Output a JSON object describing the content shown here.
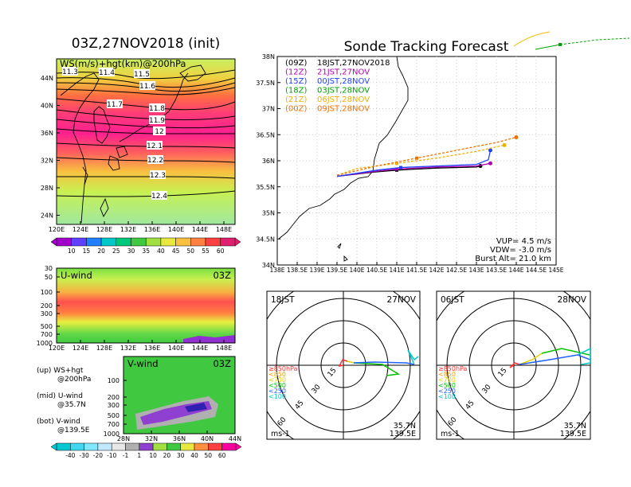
{
  "left": {
    "title": "03Z,27NOV2018 (init)",
    "top_panel": {
      "label": "WS(m/s)+hgt(km)@200hPa",
      "lat_ticks": [
        "44N",
        "40N",
        "36N",
        "32N",
        "28N",
        "24N"
      ],
      "lon_ticks": [
        "120E",
        "124E",
        "128E",
        "132E",
        "136E",
        "140E",
        "144E",
        "148E"
      ],
      "contours": [
        "11.3",
        "11.4",
        "11.5",
        "11.6",
        "11.7",
        "11.8",
        "11.9",
        "12",
        "12.1",
        "12.2",
        "12.3",
        "12.4"
      ],
      "colorbar_ticks": [
        "10",
        "15",
        "20",
        "25",
        "30",
        "35",
        "40",
        "45",
        "50",
        "55",
        "60"
      ]
    },
    "mid_panel": {
      "label": "U-wind",
      "time": "03Z",
      "p_ticks": [
        "30",
        "50",
        "100",
        "200",
        "300",
        "500",
        "700",
        "1000"
      ],
      "lon_ticks": [
        "120E",
        "124E",
        "128E",
        "132E",
        "136E",
        "140E",
        "144E",
        "148E"
      ]
    },
    "bot_panel": {
      "label": "V-wind",
      "time": "03Z",
      "p_ticks": [
        "100",
        "200",
        "300",
        "500",
        "700",
        "1000"
      ],
      "lat_ticks": [
        "28N",
        "32N",
        "36N",
        "40N",
        "44N"
      ],
      "colorbar_ticks": [
        "-40",
        "-30",
        "-20",
        "-10",
        "-1",
        "1",
        "10",
        "20",
        "30",
        "40",
        "50",
        "60"
      ]
    },
    "notes": [
      {
        "a": "(up) WS+hgt",
        "b": "@200hPa"
      },
      {
        "a": "(mid) U-wind",
        "b": "@35.7N"
      },
      {
        "a": "(bot) V-wind",
        "b": "@139.5E"
      }
    ]
  },
  "right": {
    "title": "Sonde Tracking Forecast",
    "map": {
      "lat_ticks": [
        "38N",
        "37.5N",
        "37N",
        "36.5N",
        "36N",
        "35.5N",
        "35N",
        "34.5N",
        "34N"
      ],
      "lon_ticks": [
        "138E",
        "138.5E",
        "139E",
        "139.5E",
        "140E",
        "140.5E",
        "141E",
        "141.5E",
        "142E",
        "142.5E",
        "143E",
        "143.5E",
        "144E",
        "144.5E",
        "145E"
      ],
      "legend": [
        {
          "z": "(09Z)",
          "t": "18JST,27NOV2018",
          "color": "#000000"
        },
        {
          "z": "(12Z)",
          "t": "21JST,27NOV",
          "color": "#b000b0"
        },
        {
          "z": "(15Z)",
          "t": "00JST,28NOV",
          "color": "#2040ff"
        },
        {
          "z": "(18Z)",
          "t": "03JST,28NOV",
          "color": "#00a000"
        },
        {
          "z": "(21Z)",
          "t": "06JST,28NOV",
          "color": "#f0b000"
        },
        {
          "z": "(00Z)",
          "t": "09JST,28NOV",
          "color": "#f07000"
        }
      ],
      "info": [
        "VUP= 4.5 m/s",
        "VDW= -3.0 m/s",
        "Burst Alt= 21.0 km"
      ]
    },
    "hodo_left": {
      "time": "18JST",
      "date": "27NOV",
      "lat": "35.7N",
      "lon": "139.5E",
      "unit": "ms-1",
      "rings": [
        "15",
        "30",
        "45",
        "60"
      ]
    },
    "hodo_right": {
      "time": "06JST",
      "date": "28NOV",
      "lat": "35.7N",
      "lon": "139.5E",
      "unit": "ms-1",
      "rings": [
        "15",
        "30",
        "45",
        "60"
      ]
    },
    "levels": [
      {
        "t": "≥850hPa",
        "color": "#ff3030"
      },
      {
        "t": "<850",
        "color": "#f0a000"
      },
      {
        "t": "<700",
        "color": "#e8d000"
      },
      {
        "t": "<500",
        "color": "#00c000"
      },
      {
        "t": "<250",
        "color": "#2060ff"
      },
      {
        "t": "<100",
        "color": "#00c8c8"
      }
    ]
  },
  "chart_data": [
    {
      "type": "line",
      "title": "Sonde Tracking Forecast",
      "xlabel": "",
      "ylabel": "",
      "xlim": [
        138,
        145
      ],
      "ylim": [
        34,
        38
      ],
      "series": [
        {
          "name": "(09Z) 18JST,27NOV2018",
          "points": [
            [
              139.5,
              35.7
            ],
            [
              140.4,
              35.78
            ],
            [
              141.0,
              35.82
            ],
            [
              142.0,
              35.86
            ],
            [
              143.0,
              35.88
            ],
            [
              143.1,
              35.9
            ]
          ]
        },
        {
          "name": "(12Z) 21JST,27NOV",
          "points": [
            [
              139.5,
              35.7
            ],
            [
              140.5,
              35.8
            ],
            [
              141.0,
              35.84
            ],
            [
              142.0,
              35.88
            ],
            [
              143.0,
              35.9
            ],
            [
              143.35,
              35.95
            ]
          ]
        },
        {
          "name": "(15Z) 00JST,28NOV",
          "points": [
            [
              139.5,
              35.7
            ],
            [
              140.5,
              35.82
            ],
            [
              141.1,
              35.87
            ],
            [
              142.0,
              35.9
            ],
            [
              143.0,
              35.93
            ],
            [
              143.3,
              36.02
            ],
            [
              143.35,
              36.2
            ]
          ]
        },
        {
          "name": "(21Z) 06JST,28NOV",
          "points": [
            [
              139.5,
              35.72
            ],
            [
              140.0,
              35.85
            ],
            [
              141.0,
              35.95
            ],
            [
              142.0,
              36.05
            ],
            [
              143.0,
              36.18
            ],
            [
              143.7,
              36.3
            ]
          ]
        },
        {
          "name": "(00Z) 09JST,28NOV",
          "points": [
            [
              139.5,
              35.72
            ],
            [
              140.5,
              35.9
            ],
            [
              141.5,
              36.05
            ],
            [
              142.5,
              36.2
            ],
            [
              143.5,
              36.35
            ],
            [
              144.0,
              36.45
            ]
          ]
        }
      ]
    }
  ]
}
